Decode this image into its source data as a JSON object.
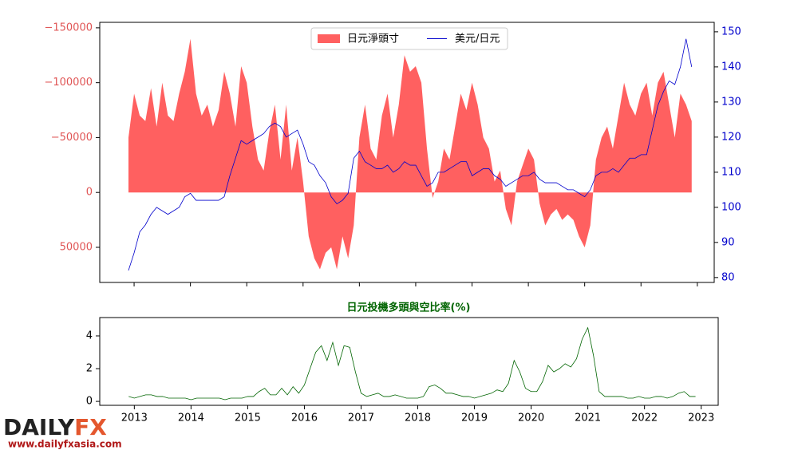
{
  "chart_data": [
    {
      "type": "area",
      "legend": "upper center",
      "x": [
        2012.9,
        2013.0,
        2013.1,
        2013.2,
        2013.3,
        2013.4,
        2013.5,
        2013.6,
        2013.7,
        2013.8,
        2013.9,
        2014.0,
        2014.1,
        2014.2,
        2014.3,
        2014.4,
        2014.5,
        2014.6,
        2014.7,
        2014.8,
        2014.9,
        2015.0,
        2015.1,
        2015.2,
        2015.3,
        2015.4,
        2015.5,
        2015.6,
        2015.7,
        2015.8,
        2015.9,
        2016.0,
        2016.1,
        2016.2,
        2016.3,
        2016.4,
        2016.5,
        2016.6,
        2016.7,
        2016.8,
        2016.9,
        2017.0,
        2017.1,
        2017.2,
        2017.3,
        2017.4,
        2017.5,
        2017.6,
        2017.7,
        2017.8,
        2017.9,
        2018.0,
        2018.1,
        2018.2,
        2018.3,
        2018.4,
        2018.5,
        2018.6,
        2018.7,
        2018.8,
        2018.9,
        2019.0,
        2019.1,
        2019.2,
        2019.3,
        2019.4,
        2019.5,
        2019.6,
        2019.7,
        2019.8,
        2019.9,
        2020.0,
        2020.1,
        2020.2,
        2020.3,
        2020.4,
        2020.5,
        2020.6,
        2020.7,
        2020.8,
        2020.9,
        2021.0,
        2021.1,
        2021.2,
        2021.3,
        2021.4,
        2021.5,
        2021.6,
        2021.7,
        2021.8,
        2021.9,
        2022.0,
        2022.1,
        2022.2,
        2022.3,
        2022.4,
        2022.5,
        2022.6,
        2022.7,
        2022.8,
        2022.9
      ],
      "xlim": [
        2012.39,
        2023.3
      ],
      "xticks": [
        2013,
        2014,
        2015,
        2016,
        2017,
        2018,
        2019,
        2020,
        2021,
        2022,
        2023
      ],
      "ylim": [
        82000,
        -155000
      ],
      "yticks": [
        {
          "value": -150000,
          "label": "−150000"
        },
        {
          "value": -100000,
          "label": "−100000"
        },
        {
          "value": -50000,
          "label": "−50000"
        },
        0,
        50000
      ],
      "y2lim": [
        78.6,
        152.7
      ],
      "y2ticks": [
        80,
        90,
        100,
        110,
        120,
        130,
        140,
        150
      ],
      "series": [
        {
          "name": "日元淨頭寸",
          "color": "#ff6060",
          "values": [
            -50000,
            -90000,
            -70000,
            -65000,
            -95000,
            -60000,
            -100000,
            -70000,
            -65000,
            -90000,
            -110000,
            -140000,
            -90000,
            -70000,
            -80000,
            -60000,
            -75000,
            -110000,
            -90000,
            -60000,
            -115000,
            -100000,
            -60000,
            -30000,
            -20000,
            -55000,
            -80000,
            -30000,
            -80000,
            -20000,
            -50000,
            -10000,
            40000,
            60000,
            70000,
            55000,
            50000,
            70000,
            40000,
            60000,
            30000,
            -50000,
            -80000,
            -40000,
            -30000,
            -70000,
            -90000,
            -50000,
            -80000,
            -125000,
            -110000,
            -115000,
            -100000,
            -40000,
            5000,
            -10000,
            -40000,
            -30000,
            -60000,
            -90000,
            -75000,
            -100000,
            -80000,
            -50000,
            -40000,
            -10000,
            -20000,
            15000,
            30000,
            -10000,
            -25000,
            -40000,
            -30000,
            10000,
            30000,
            20000,
            15000,
            25000,
            20000,
            25000,
            40000,
            50000,
            30000,
            -30000,
            -50000,
            -60000,
            -40000,
            -70000,
            -100000,
            -80000,
            -70000,
            -90000,
            -100000,
            -70000,
            -100000,
            -110000,
            -80000,
            -50000,
            -90000,
            -80000,
            -65000
          ]
        },
        {
          "name": "美元/日元",
          "color": "#0000cc",
          "axis": "y2",
          "values": [
            82,
            87,
            93,
            95,
            98,
            100,
            99,
            98,
            99,
            100,
            103,
            104,
            102,
            102,
            102,
            102,
            102,
            103,
            109,
            114,
            119,
            118,
            119,
            120,
            121,
            123,
            124,
            123,
            120,
            121,
            122,
            118,
            113,
            112,
            109,
            107,
            103,
            101,
            102,
            104,
            114,
            116,
            113,
            112,
            111,
            111,
            112,
            110,
            111,
            113,
            112,
            112,
            109,
            106,
            107,
            110,
            110,
            111,
            112,
            113,
            113,
            109,
            110,
            111,
            111,
            109,
            108,
            106,
            107,
            108,
            109,
            109,
            110,
            108,
            107,
            107,
            107,
            106,
            105,
            105,
            104,
            103,
            105,
            109,
            110,
            110,
            111,
            110,
            112,
            114,
            114,
            115,
            115,
            122,
            129,
            133,
            136,
            135,
            140,
            148,
            140
          ]
        }
      ]
    },
    {
      "type": "line",
      "title": "日元投機多頭與空比率(%)",
      "x": [
        2012.9,
        2013.0,
        2013.1,
        2013.2,
        2013.3,
        2013.4,
        2013.5,
        2013.6,
        2013.7,
        2013.8,
        2013.9,
        2014.0,
        2014.1,
        2014.2,
        2014.3,
        2014.4,
        2014.5,
        2014.6,
        2014.7,
        2014.8,
        2014.9,
        2015.0,
        2015.1,
        2015.2,
        2015.3,
        2015.4,
        2015.5,
        2015.6,
        2015.7,
        2015.8,
        2015.9,
        2016.0,
        2016.1,
        2016.2,
        2016.3,
        2016.4,
        2016.5,
        2016.6,
        2016.7,
        2016.8,
        2016.9,
        2017.0,
        2017.1,
        2017.2,
        2017.3,
        2017.4,
        2017.5,
        2017.6,
        2017.7,
        2017.8,
        2017.9,
        2018.0,
        2018.1,
        2018.2,
        2018.3,
        2018.4,
        2018.5,
        2018.6,
        2018.7,
        2018.8,
        2018.9,
        2019.0,
        2019.1,
        2019.2,
        2019.3,
        2019.4,
        2019.5,
        2019.6,
        2019.7,
        2019.8,
        2019.9,
        2020.0,
        2020.1,
        2020.2,
        2020.3,
        2020.4,
        2020.5,
        2020.6,
        2020.7,
        2020.8,
        2020.9,
        2021.0,
        2021.1,
        2021.2,
        2021.3,
        2021.4,
        2021.5,
        2021.6,
        2021.7,
        2021.8,
        2021.9,
        2022.0,
        2022.1,
        2022.2,
        2022.3,
        2022.4,
        2022.5,
        2022.6,
        2022.7,
        2022.8,
        2022.9
      ],
      "xlim": [
        2012.39,
        2023.3
      ],
      "xticks": [
        2013,
        2014,
        2015,
        2016,
        2017,
        2018,
        2019,
        2020,
        2021,
        2022,
        2023
      ],
      "ylim": [
        -0.24,
        5.12
      ],
      "yticks": [
        0,
        2,
        4
      ],
      "color": "#006400",
      "values": [
        0.3,
        0.2,
        0.3,
        0.4,
        0.4,
        0.3,
        0.3,
        0.2,
        0.2,
        0.2,
        0.2,
        0.1,
        0.2,
        0.2,
        0.2,
        0.2,
        0.2,
        0.1,
        0.2,
        0.2,
        0.2,
        0.3,
        0.3,
        0.6,
        0.8,
        0.4,
        0.4,
        0.8,
        0.4,
        0.9,
        0.5,
        1.0,
        2.0,
        3.0,
        3.4,
        2.5,
        3.6,
        2.2,
        3.4,
        3.3,
        1.8,
        0.5,
        0.3,
        0.4,
        0.5,
        0.3,
        0.3,
        0.4,
        0.3,
        0.2,
        0.2,
        0.2,
        0.3,
        0.9,
        1.0,
        0.8,
        0.5,
        0.5,
        0.4,
        0.3,
        0.3,
        0.2,
        0.3,
        0.4,
        0.5,
        0.7,
        0.6,
        1.1,
        2.5,
        1.8,
        0.8,
        0.6,
        0.6,
        1.2,
        2.2,
        1.8,
        2.0,
        2.3,
        2.1,
        2.6,
        3.8,
        4.5,
        2.8,
        0.6,
        0.3,
        0.3,
        0.3,
        0.3,
        0.2,
        0.2,
        0.3,
        0.2,
        0.2,
        0.3,
        0.3,
        0.2,
        0.3,
        0.5,
        0.6,
        0.3,
        0.3
      ]
    }
  ],
  "logo": {
    "brand": "DAILY",
    "brand_fx": "FX",
    "url": "www.dailyfxasia.com"
  }
}
